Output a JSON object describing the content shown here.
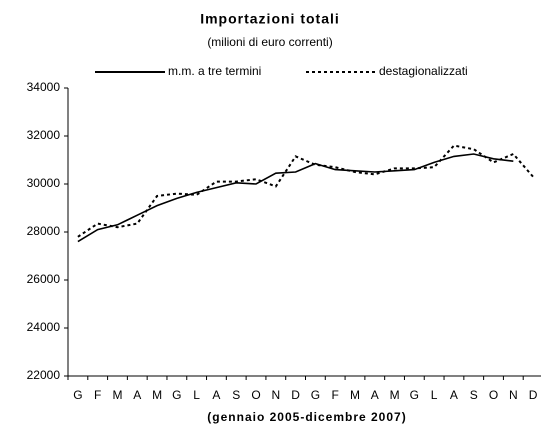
{
  "chart_data": {
    "type": "line",
    "title": "Importazioni totali",
    "subtitle": "(milioni di euro correnti)",
    "x_label": "(gennaio 2005-dicembre 2007)",
    "categories": [
      "G",
      "F",
      "M",
      "A",
      "M",
      "G",
      "L",
      "A",
      "S",
      "O",
      "N",
      "D",
      "G",
      "F",
      "M",
      "A",
      "M",
      "G",
      "L",
      "A",
      "S",
      "O",
      "N",
      "D"
    ],
    "series": [
      {
        "name": "m.m. a tre termini",
        "color": "#000000",
        "dash": false,
        "values": [
          27600,
          28100,
          28300,
          28700,
          29100,
          29400,
          29650,
          29850,
          30050,
          30000,
          30450,
          30500,
          30850,
          30600,
          30550,
          30500,
          30550,
          30600,
          30900,
          31150,
          31250,
          31050,
          30950,
          null
        ]
      },
      {
        "name": "destagionalizzati",
        "color": "#000000",
        "dash": true,
        "values": [
          27800,
          28350,
          28200,
          28350,
          29500,
          29600,
          29550,
          30100,
          30100,
          30200,
          29900,
          31150,
          30800,
          30700,
          30500,
          30400,
          30650,
          30650,
          30700,
          31600,
          31450,
          30900,
          31250,
          30300
        ]
      }
    ],
    "ylim": [
      22000,
      34000
    ],
    "yticks": [
      22000,
      24000,
      26000,
      28000,
      30000,
      32000,
      34000
    ],
    "grid": false
  }
}
